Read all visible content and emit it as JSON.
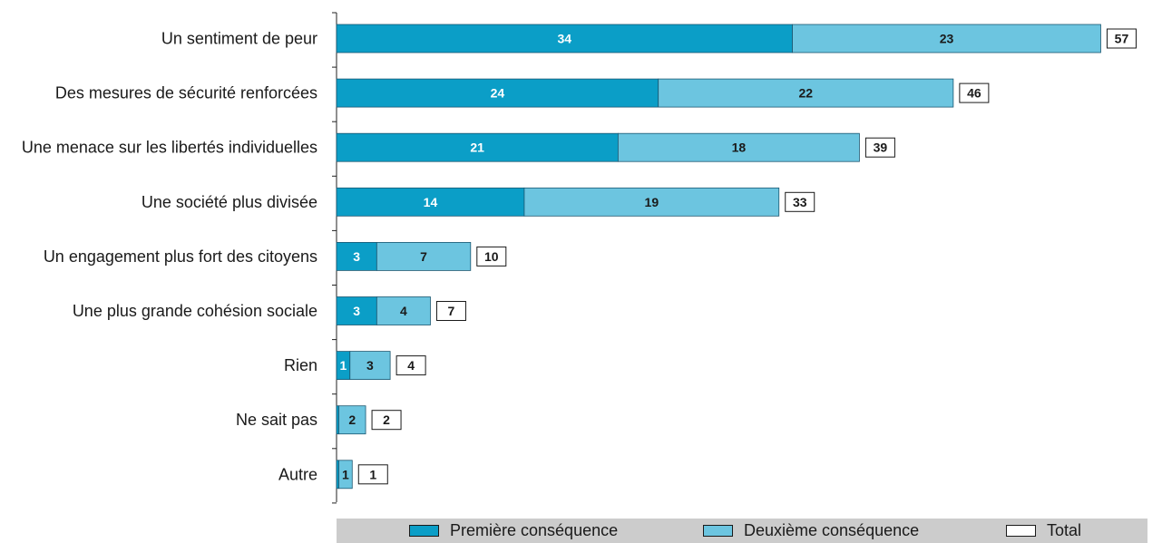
{
  "chart_data": {
    "type": "bar",
    "orientation": "horizontal",
    "stacked": true,
    "categories": [
      "Un sentiment de peur",
      "Des mesures de sécurité renforcées",
      "Une menace sur les libertés individuelles",
      "Une société plus divisée",
      "Un engagement plus fort des citoyens",
      "Une plus grande cohésion sociale",
      "Rien",
      "Ne sait pas",
      "Autre"
    ],
    "series": [
      {
        "name": "Première conséquence",
        "values": [
          34,
          24,
          21,
          14,
          3,
          3,
          1,
          0,
          0
        ],
        "labels": [
          "34",
          "24",
          "21",
          "14",
          "3",
          "3",
          "1",
          "",
          ""
        ],
        "color": "#0b9ec7"
      },
      {
        "name": "Deuxième conséquence",
        "values": [
          23,
          22,
          18,
          19,
          7,
          4,
          3,
          2,
          1
        ],
        "labels": [
          "23",
          "22",
          "18",
          "19",
          "7",
          "4",
          "3",
          "2",
          "1"
        ],
        "color": "#6cc5e0"
      }
    ],
    "totals": {
      "name": "Total",
      "values": [
        57,
        46,
        39,
        33,
        10,
        7,
        4,
        2,
        1
      ]
    },
    "xlim": [
      0,
      60
    ],
    "grid": false,
    "legend_position": "bottom"
  }
}
